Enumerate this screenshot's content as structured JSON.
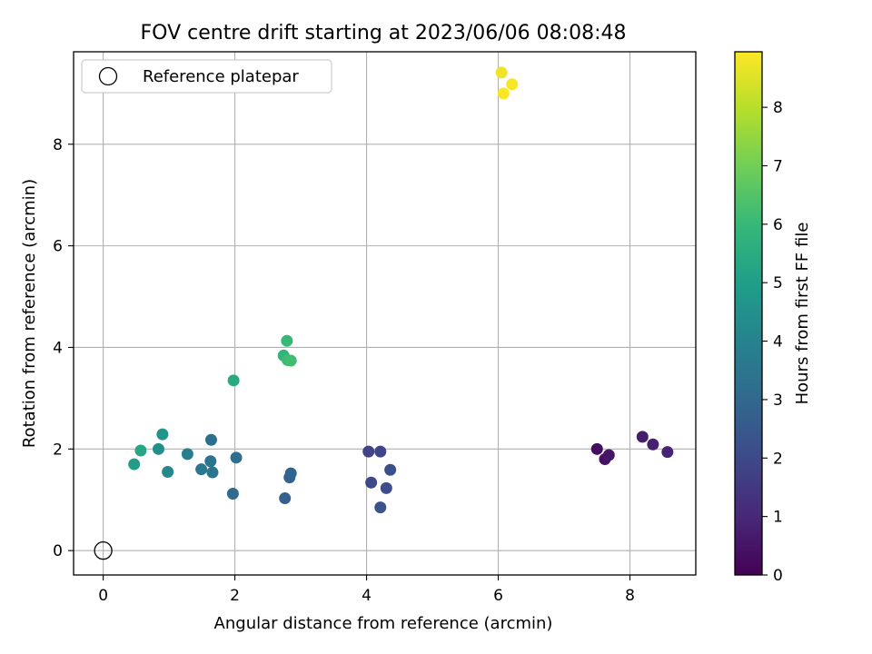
{
  "chart_data": {
    "type": "scatter",
    "title": "FOV centre drift starting at 2023/06/06 08:08:48",
    "xlabel": "Angular distance from reference (arcmin)",
    "ylabel": "Rotation from reference (arcmin)",
    "xlim": [
      -0.45,
      9.0
    ],
    "ylim": [
      -0.48,
      9.82
    ],
    "xticks": [
      0,
      2,
      4,
      6,
      8
    ],
    "yticks": [
      0,
      2,
      4,
      6,
      8
    ],
    "grid": true,
    "legend": {
      "position": "top-left",
      "entries": [
        "Reference platepar"
      ]
    },
    "reference_point": {
      "x": 0,
      "y": 0,
      "label": "Reference platepar"
    },
    "colorbar": {
      "label": "Hours from first FF file",
      "colormap": "viridis",
      "range": [
        0,
        8.95
      ],
      "ticks": [
        0,
        1,
        2,
        3,
        4,
        5,
        6,
        7,
        8
      ]
    },
    "points": [
      {
        "x": 7.5,
        "y": 2.0,
        "hours": 0.3
      },
      {
        "x": 7.62,
        "y": 1.8,
        "hours": 0.4
      },
      {
        "x": 7.68,
        "y": 1.88,
        "hours": 0.5
      },
      {
        "x": 8.19,
        "y": 2.24,
        "hours": 0.7
      },
      {
        "x": 8.35,
        "y": 2.09,
        "hours": 0.8
      },
      {
        "x": 8.57,
        "y": 1.94,
        "hours": 0.9
      },
      {
        "x": 4.03,
        "y": 1.95,
        "hours": 1.8
      },
      {
        "x": 4.21,
        "y": 1.95,
        "hours": 1.9
      },
      {
        "x": 4.07,
        "y": 1.34,
        "hours": 2.0
      },
      {
        "x": 4.3,
        "y": 1.23,
        "hours": 2.1
      },
      {
        "x": 4.36,
        "y": 1.59,
        "hours": 2.2
      },
      {
        "x": 4.21,
        "y": 0.85,
        "hours": 2.3
      },
      {
        "x": 2.76,
        "y": 1.03,
        "hours": 2.7
      },
      {
        "x": 2.83,
        "y": 1.44,
        "hours": 2.8
      },
      {
        "x": 2.85,
        "y": 1.52,
        "hours": 2.9
      },
      {
        "x": 1.97,
        "y": 1.12,
        "hours": 3.1
      },
      {
        "x": 2.02,
        "y": 1.83,
        "hours": 3.2
      },
      {
        "x": 1.64,
        "y": 2.18,
        "hours": 3.3
      },
      {
        "x": 1.63,
        "y": 1.76,
        "hours": 3.4
      },
      {
        "x": 1.66,
        "y": 1.54,
        "hours": 3.5
      },
      {
        "x": 1.49,
        "y": 1.6,
        "hours": 3.6
      },
      {
        "x": 1.28,
        "y": 1.9,
        "hours": 3.8
      },
      {
        "x": 0.98,
        "y": 1.55,
        "hours": 4.2
      },
      {
        "x": 0.84,
        "y": 2.0,
        "hours": 4.4
      },
      {
        "x": 0.9,
        "y": 2.29,
        "hours": 4.6
      },
      {
        "x": 0.47,
        "y": 1.7,
        "hours": 4.9
      },
      {
        "x": 0.57,
        "y": 1.97,
        "hours": 5.3
      },
      {
        "x": 1.98,
        "y": 3.35,
        "hours": 5.4
      },
      {
        "x": 2.74,
        "y": 3.84,
        "hours": 5.8
      },
      {
        "x": 2.79,
        "y": 4.13,
        "hours": 6.0
      },
      {
        "x": 2.8,
        "y": 3.75,
        "hours": 6.1
      },
      {
        "x": 2.85,
        "y": 3.74,
        "hours": 6.2
      },
      {
        "x": 6.05,
        "y": 9.41,
        "hours": 8.75
      },
      {
        "x": 6.21,
        "y": 9.18,
        "hours": 8.85
      },
      {
        "x": 6.08,
        "y": 9.0,
        "hours": 8.9
      }
    ]
  }
}
